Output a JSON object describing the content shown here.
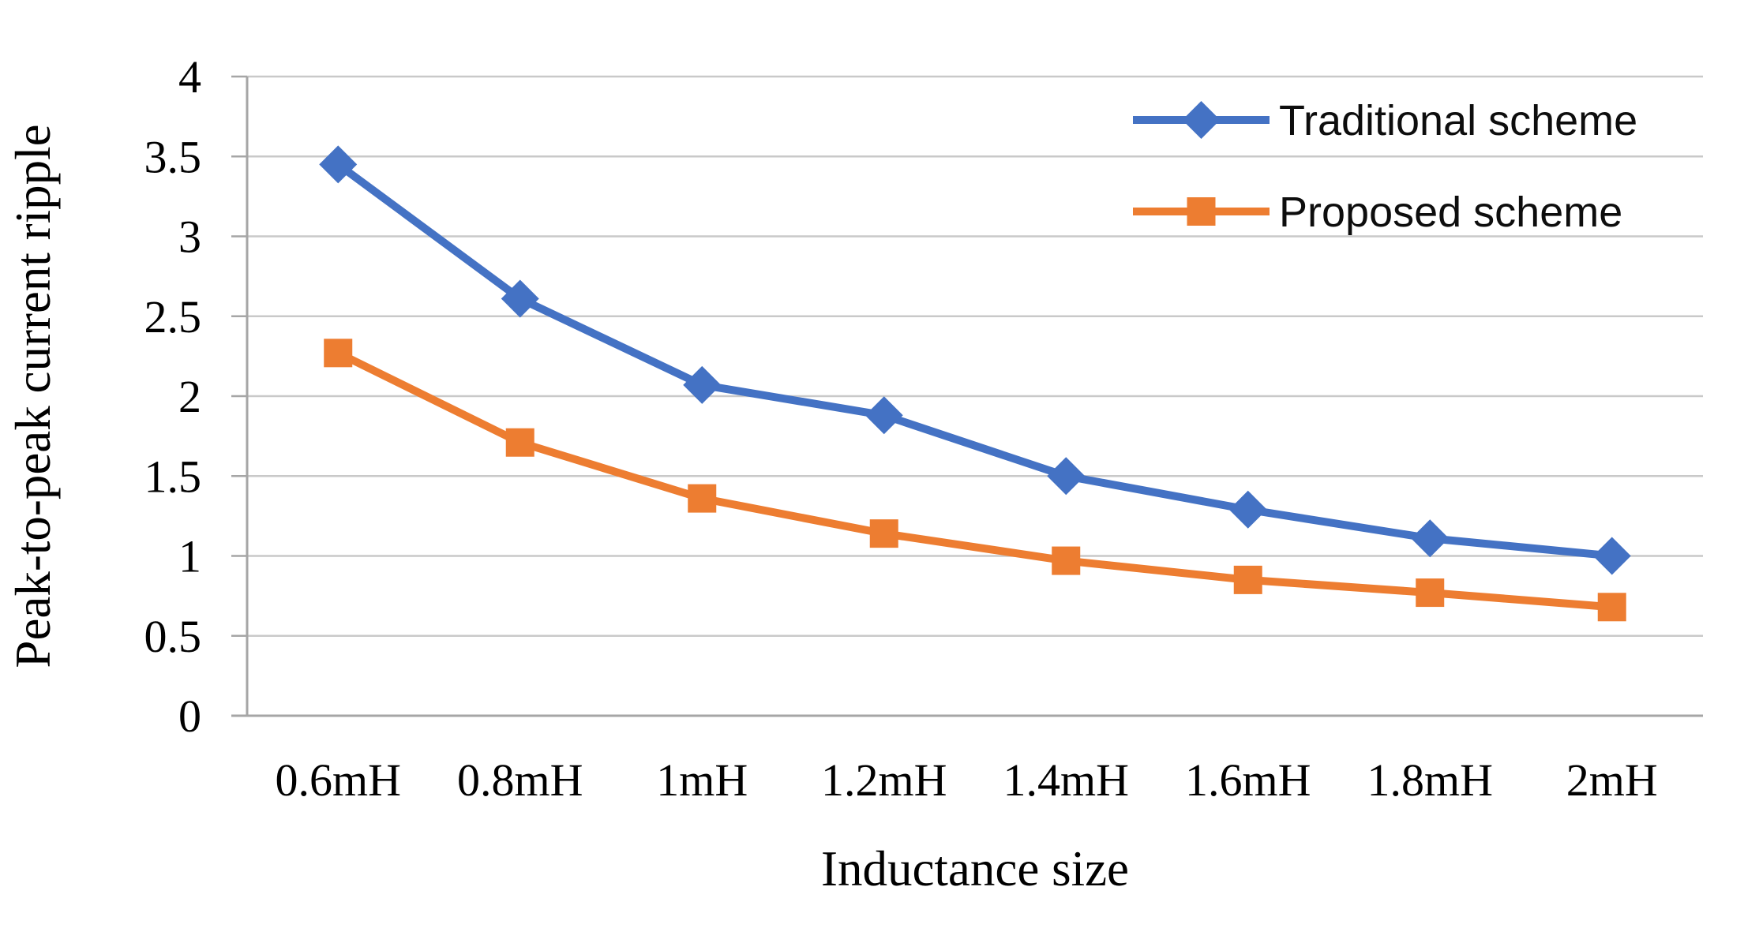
{
  "chart_data": {
    "type": "line",
    "title": "",
    "xlabel": "Inductance size",
    "ylabel": "Peak-to-peak current ripple",
    "categories": [
      "0.6mH",
      "0.8mH",
      "1mH",
      "1.2mH",
      "1.4mH",
      "1.6mH",
      "1.8mH",
      "2mH"
    ],
    "series": [
      {
        "name": "Traditional scheme",
        "color": "#4472C4",
        "marker": "diamond",
        "values": [
          3.45,
          2.61,
          2.07,
          1.88,
          1.5,
          1.29,
          1.11,
          1.0
        ]
      },
      {
        "name": "Proposed scheme",
        "color": "#ED7D31",
        "marker": "square",
        "values": [
          2.27,
          1.71,
          1.36,
          1.14,
          0.97,
          0.85,
          0.77,
          0.68
        ]
      }
    ],
    "ylim": [
      0,
      4
    ],
    "yticks": [
      0,
      0.5,
      1,
      1.5,
      2,
      2.5,
      3,
      3.5,
      4
    ],
    "ytick_labels": [
      "0",
      "0.5",
      "1",
      "1.5",
      "2",
      "2.5",
      "3",
      "3.5",
      "4"
    ],
    "grid": "horizontal-only",
    "legend_position": "top-right",
    "gridline_color": "#c9c9c9",
    "axis_line_color": "#a6a6a6",
    "text_color": "#000000"
  }
}
